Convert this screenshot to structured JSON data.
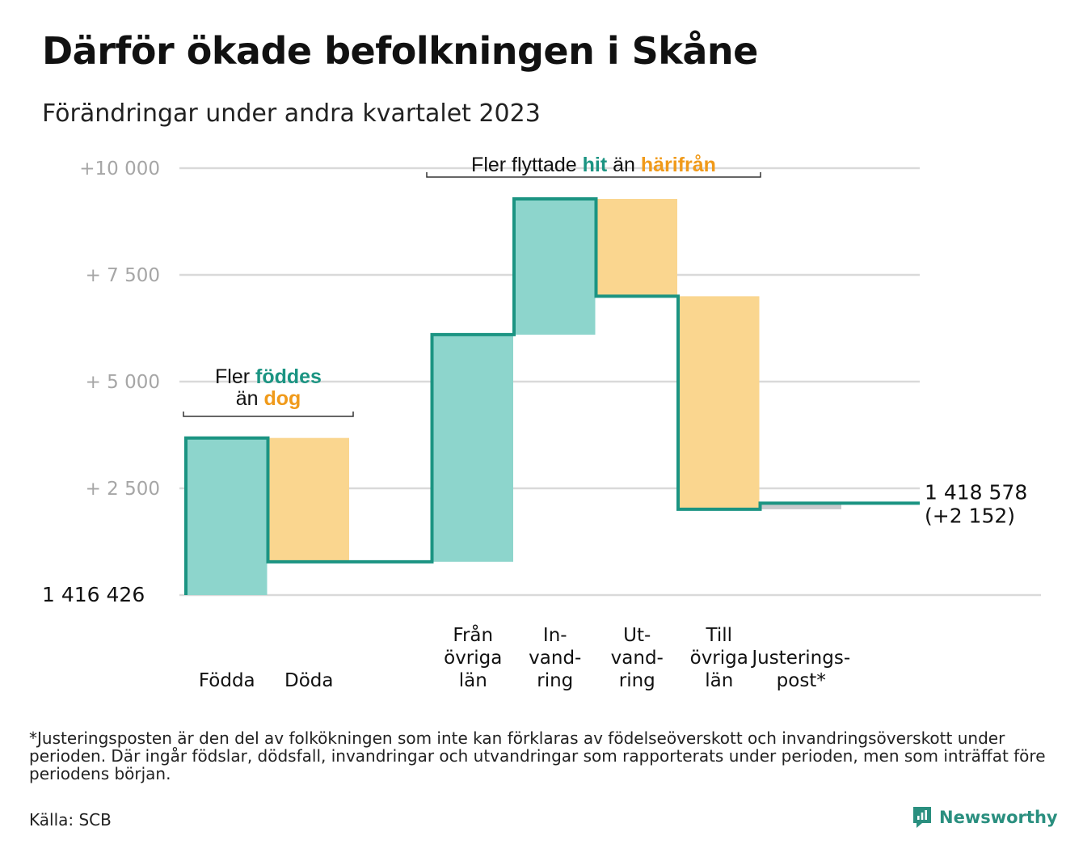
{
  "title": "Därför ökade befolkningen i Skåne",
  "subtitle": "Förändringar under andra kvartalet 2023",
  "footnote": "*Justeringsposten är den del av folkökningen som inte kan förklaras av födelseöverskott och invandringsöverskott under perioden. Där ingår födslar, dödsfall, invandringar och utvandringar som rapporterats under perioden, men som inträffat före periodens början.",
  "source": "Källa: SCB",
  "brand": {
    "name": "Newsworthy",
    "icon": "newsworthy-logo-icon"
  },
  "colors": {
    "increase": "#8dd5cc",
    "decrease": "#fad68f",
    "adjustment": "#c7c9cc",
    "step_line": "#1b9482",
    "grid": "#d9d9d9",
    "tick_text": "#a6a6a6",
    "accent_green": "#1b9482",
    "accent_orange": "#f09a1a"
  },
  "chart_data": {
    "type": "waterfall",
    "start_value": 1416426,
    "start_label": "1 416 426",
    "end_value": 1418578,
    "end_label": "1 418 578",
    "end_change_label": "(+2 152)",
    "ylim": [
      0,
      10000
    ],
    "yticks": [
      {
        "value": 2500,
        "label": "+ 2 500"
      },
      {
        "value": 5000,
        "label": "+ 5 000"
      },
      {
        "value": 7500,
        "label": "+ 7 500"
      },
      {
        "value": 10000,
        "label": "+10 000"
      }
    ],
    "grid": true,
    "steps": [
      {
        "key": "fodda",
        "label_lines": [
          "Födda"
        ],
        "change": 3680,
        "kind": "increase"
      },
      {
        "key": "doda",
        "label_lines": [
          "Döda"
        ],
        "change": -2900,
        "kind": "decrease"
      },
      {
        "key": "gap",
        "label_lines": [],
        "change": 0,
        "kind": "gap"
      },
      {
        "key": "fran-ovriga-lan",
        "label_lines": [
          "Från",
          "övriga",
          "län"
        ],
        "change": 5320,
        "kind": "increase"
      },
      {
        "key": "invandring",
        "label_lines": [
          "In-",
          "vand-",
          "ring"
        ],
        "change": 3180,
        "kind": "increase"
      },
      {
        "key": "utvandring",
        "label_lines": [
          "Ut-",
          "vand-",
          "ring"
        ],
        "change": -2280,
        "kind": "decrease"
      },
      {
        "key": "till-ovriga-lan",
        "label_lines": [
          "Till",
          "övriga",
          "län"
        ],
        "change": -4990,
        "kind": "decrease"
      },
      {
        "key": "justeringspost",
        "label_lines": [
          "Justerings-",
          "post*"
        ],
        "change": 142,
        "kind": "adjustment"
      }
    ],
    "annotations": [
      {
        "key": "births",
        "line1_prefix": "Fler",
        "line1_highlight": "föddes",
        "line2_prefix": "än",
        "line2_highlight": "dog"
      },
      {
        "key": "migration",
        "prefix": "Fler flyttade",
        "highlight1": "hit",
        "middle": "än",
        "highlight2": "härifrån"
      }
    ]
  }
}
